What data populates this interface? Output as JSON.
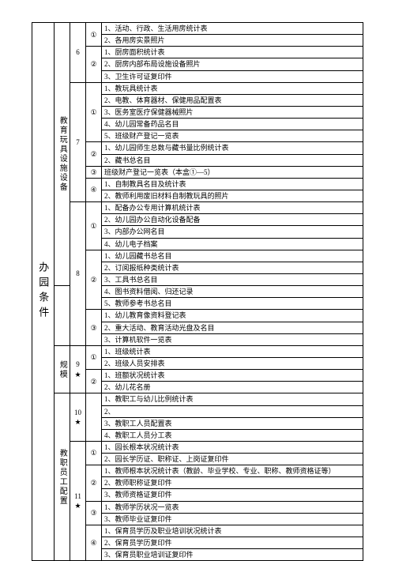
{
  "col1": {
    "label": "办园条件"
  },
  "col2": {
    "a": "教育玩具设施设备",
    "b": "规模",
    "c": "教职员工配置"
  },
  "sections": {
    "s6": {
      "num": "6",
      "g1": {
        "mark": "①",
        "i1": "1、活动、行政、生活用房统计表",
        "i2": "2、各用房实景照片"
      },
      "g2": {
        "mark": "②",
        "i1": "1、厨房面积统计表",
        "i2": "2、厨房内部布局设施设备照片",
        "i3": "3、卫生许可证复印件"
      }
    },
    "s7": {
      "num": "7",
      "g1": {
        "mark": "①",
        "i1": "1、教玩具统计表",
        "i2": "2、电教、体育器材、保健用品配置表",
        "i3": "3、医务室医疗保健器械照片",
        "i4": "4、幼儿园常备药品名目",
        "i5": "5、班级财产登记一览表"
      },
      "g2": {
        "mark": "②",
        "i1": "1、幼儿园师生总数与藏书量比例统计表",
        "i2": "2、藏书总名目"
      },
      "g3": {
        "mark": "③",
        "i1": "班级财产登记一览表（本盒①—5）"
      },
      "g4": {
        "mark": "④",
        "i1": "1、自制教具名目及统计表",
        "i2": "2、教师利用废旧材料自制教玩具的照片"
      }
    },
    "s8": {
      "num": "8",
      "g1": {
        "mark": "①",
        "i1": "1、配备办公专用计算机统计表",
        "i2": "2、幼儿园办公自动化设备配备",
        "i3": "3、内部办公网名目",
        "i4": "4、幼儿电子档案"
      },
      "g2": {
        "mark": "②",
        "i1": "1、幼儿园藏书总名目",
        "i2": "2、订阅报纸种类统计表",
        "i3": "3、工具书总名目",
        "i4": "4、图书资料借阅、归还记录",
        "i5": "5、教师参考书总名目"
      },
      "g3": {
        "mark": "③",
        "i1": "1、幼儿教育像资料登记表",
        "i2": "2、重大活动、教育活动光盘及名目",
        "i3": "3、计算机软件一览表"
      }
    },
    "s9": {
      "num": "9",
      "star": "★",
      "g1": {
        "mark": "①",
        "i1": "1、班级统计表",
        "i2": "2、班级人员安排表"
      },
      "g2": {
        "mark": "②",
        "i1": "1、班额状况统计表",
        "i2": "2、幼儿花名册"
      }
    },
    "s10": {
      "num": "10",
      "star": "★",
      "g1": {
        "i1": "1、教职工与幼儿比例统计表",
        "i2": "2、",
        "i3": "3、教职工人员配置表",
        "i4": "4、教职工人员分工表"
      }
    },
    "s11": {
      "num": "11",
      "star": "★",
      "g1": {
        "mark": "①",
        "i1": "1、园长根本状况统计表",
        "i2": "2、园长学历证、职称证、上岗证复印件"
      },
      "g2": {
        "mark": "②",
        "i1": "1、教师根本状况统计表（教龄、毕业学校、专业、职称、教师资格证等）",
        "i2": "2、教师职称证复印件",
        "i3": "3、教师资格证复印件"
      },
      "g3": {
        "mark": "③",
        "i1": "1、教师学历状况一览表",
        "i2": "2、",
        "i3": "3、教师毕业证复印件"
      },
      "g4": {
        "mark": "④",
        "i1": "1、保育员学历及职业培训状况统计表",
        "i2": "2、保育员学历复印件",
        "i3": "3、保育员职业培训证复印件"
      }
    }
  }
}
